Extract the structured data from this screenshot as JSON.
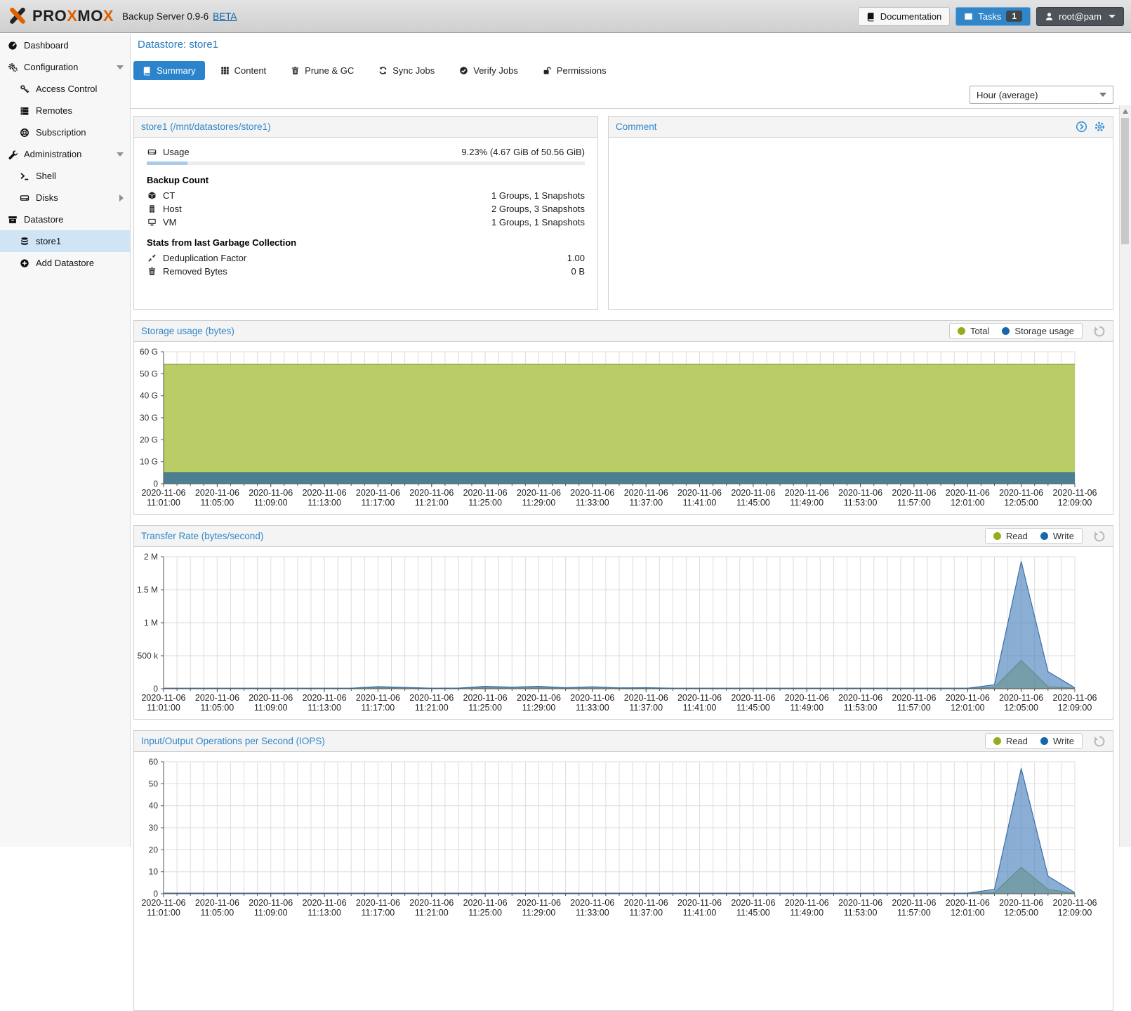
{
  "header": {
    "brand": "PROXMOX",
    "subtitle": "Backup Server 0.9-6",
    "beta": "BETA",
    "documentation": "Documentation",
    "tasks": "Tasks",
    "tasks_count": "1",
    "user": "root@pam",
    "icons": {
      "documentation": "book",
      "tasks": "list",
      "user": "user"
    }
  },
  "sidebar": {
    "items": [
      {
        "label": "Dashboard",
        "icon": "tachometer",
        "level": 0
      },
      {
        "label": "Configuration",
        "icon": "cogs",
        "level": 0,
        "arrow": "down"
      },
      {
        "label": "Access Control",
        "icon": "key",
        "level": 1
      },
      {
        "label": "Remotes",
        "icon": "server-list",
        "level": 1
      },
      {
        "label": "Subscription",
        "icon": "life-ring",
        "level": 1
      },
      {
        "label": "Administration",
        "icon": "wrench",
        "level": 0,
        "arrow": "down"
      },
      {
        "label": "Shell",
        "icon": "terminal",
        "level": 1
      },
      {
        "label": "Disks",
        "icon": "hdd",
        "level": 1,
        "arrow": "right"
      },
      {
        "label": "Datastore",
        "icon": "archive",
        "level": 0
      },
      {
        "label": "store1",
        "icon": "database",
        "level": 1,
        "selected": true
      },
      {
        "label": "Add Datastore",
        "icon": "plus-circle",
        "level": 1
      }
    ]
  },
  "page": {
    "title": "Datastore: store1",
    "tabs": [
      {
        "label": "Summary",
        "icon": "book",
        "active": true
      },
      {
        "label": "Content",
        "icon": "grid"
      },
      {
        "label": "Prune & GC",
        "icon": "trash"
      },
      {
        "label": "Sync Jobs",
        "icon": "sync"
      },
      {
        "label": "Verify Jobs",
        "icon": "check-circle"
      },
      {
        "label": "Permissions",
        "icon": "unlock"
      }
    ],
    "range_select": "Hour (average)"
  },
  "store_panel": {
    "title": "store1 (/mnt/datastores/store1)",
    "usage_label": "Usage",
    "usage_value": "9.23% (4.67 GiB of 50.56 GiB)",
    "usage_pct": 9.23,
    "backup_count_heading": "Backup Count",
    "rows": [
      {
        "icon": "cube",
        "label": "CT",
        "value": "1 Groups, 1 Snapshots"
      },
      {
        "icon": "building",
        "label": "Host",
        "value": "2 Groups, 3 Snapshots"
      },
      {
        "icon": "desktop",
        "label": "VM",
        "value": "1 Groups, 1 Snapshots"
      }
    ],
    "gc_heading": "Stats from last Garbage Collection",
    "gc_rows": [
      {
        "icon": "compress",
        "label": "Deduplication Factor",
        "value": "1.00"
      },
      {
        "icon": "trash",
        "label": "Removed Bytes",
        "value": "0 B"
      }
    ]
  },
  "comment_panel": {
    "title": "Comment"
  },
  "chart_data": [
    {
      "type": "area",
      "title": "Storage usage (bytes)",
      "ylabel": "bytes",
      "ylim": [
        0,
        60000000000
      ],
      "minutes_span": 68,
      "points_per_label": 2,
      "x_date": "2020-11-06",
      "x_times": [
        "11:01:00",
        "11:05:00",
        "11:09:00",
        "11:13:00",
        "11:17:00",
        "11:21:00",
        "11:25:00",
        "11:29:00",
        "11:33:00",
        "11:37:00",
        "11:41:00",
        "11:45:00",
        "11:49:00",
        "11:53:00",
        "11:57:00",
        "12:01:00",
        "12:05:00",
        "12:09:00"
      ],
      "y_ticks": [
        {
          "v": 0,
          "label": "0"
        },
        {
          "v": 10000000000,
          "label": "10 G"
        },
        {
          "v": 20000000000,
          "label": "20 G"
        },
        {
          "v": 30000000000,
          "label": "30 G"
        },
        {
          "v": 40000000000,
          "label": "40 G"
        },
        {
          "v": 50000000000,
          "label": "50 G"
        },
        {
          "v": 60000000000,
          "label": "60 G"
        }
      ],
      "legend": [
        {
          "label": "Total",
          "color": "#94ad1a"
        },
        {
          "label": "Storage usage",
          "color": "#1866ae"
        }
      ],
      "series": [
        {
          "name": "Total",
          "line": "#7f9c3a",
          "fill": "#b9cc66",
          "values": [
            54300000000,
            54300000000,
            54300000000,
            54300000000,
            54300000000,
            54300000000,
            54300000000,
            54300000000,
            54300000000,
            54300000000,
            54300000000,
            54300000000,
            54300000000,
            54300000000,
            54300000000,
            54300000000,
            54300000000,
            54300000000,
            54300000000,
            54300000000,
            54300000000,
            54300000000,
            54300000000,
            54300000000,
            54300000000,
            54300000000,
            54300000000,
            54300000000,
            54300000000,
            54300000000,
            54300000000,
            54300000000,
            54300000000,
            54300000000,
            54300000000
          ]
        },
        {
          "name": "Storage usage",
          "line": "#2e6076",
          "fill": "#4d7f93",
          "values": [
            5010000000,
            5010000000,
            5010000000,
            5010000000,
            5010000000,
            5010000000,
            5010000000,
            5010000000,
            5010000000,
            5010000000,
            5010000000,
            5010000000,
            5010000000,
            5010000000,
            5010000000,
            5010000000,
            5010000000,
            5010000000,
            5010000000,
            5010000000,
            5010000000,
            5010000000,
            5010000000,
            5010000000,
            5010000000,
            5010000000,
            5010000000,
            5010000000,
            5010000000,
            5010000000,
            5010000000,
            5010000000,
            5010000000,
            5010000000,
            5010000000
          ]
        }
      ]
    },
    {
      "type": "area",
      "title": "Transfer Rate (bytes/second)",
      "ylabel": "bytes/second",
      "ylim": [
        0,
        2000000
      ],
      "minutes_span": 68,
      "points_per_label": 2,
      "x_date": "2020-11-06",
      "x_times": [
        "11:01:00",
        "11:05:00",
        "11:09:00",
        "11:13:00",
        "11:17:00",
        "11:21:00",
        "11:25:00",
        "11:29:00",
        "11:33:00",
        "11:37:00",
        "11:41:00",
        "11:45:00",
        "11:49:00",
        "11:53:00",
        "11:57:00",
        "12:01:00",
        "12:05:00",
        "12:09:00"
      ],
      "y_ticks": [
        {
          "v": 0,
          "label": "0"
        },
        {
          "v": 500000,
          "label": "500 k"
        },
        {
          "v": 1000000,
          "label": "1 M"
        },
        {
          "v": 1500000,
          "label": "1.5 M"
        },
        {
          "v": 2000000,
          "label": "2 M"
        }
      ],
      "legend": [
        {
          "label": "Read",
          "color": "#94ad1a"
        },
        {
          "label": "Write",
          "color": "#1866ae"
        }
      ],
      "series": [
        {
          "name": "Read",
          "line": "#87a018",
          "fill": "rgba(148,173,30,0.55)",
          "values": [
            5000,
            5000,
            5000,
            5000,
            5000,
            5000,
            5000,
            5000,
            22000,
            15000,
            6000,
            8000,
            26000,
            18000,
            26000,
            12000,
            24000,
            10000,
            12000,
            6000,
            6000,
            6000,
            6000,
            6000,
            6000,
            6000,
            6000,
            6000,
            6000,
            6000,
            6000,
            20000,
            430000,
            30000,
            8000
          ]
        },
        {
          "name": "Write",
          "line": "#3a6ea8",
          "fill": "rgba(77,131,190,0.65)",
          "values": [
            9000,
            9000,
            9000,
            9000,
            9000,
            9000,
            9000,
            9000,
            32000,
            20000,
            9000,
            10000,
            36000,
            24000,
            36000,
            16000,
            30000,
            14000,
            16000,
            9000,
            9000,
            9000,
            9000,
            9000,
            9000,
            9000,
            9000,
            9000,
            9000,
            9000,
            9000,
            60000,
            1930000,
            260000,
            15000
          ]
        }
      ]
    },
    {
      "type": "area",
      "title": "Input/Output Operations per Second (IOPS)",
      "ylabel": "IOPS",
      "ylim": [
        0,
        60
      ],
      "minutes_span": 68,
      "points_per_label": 2,
      "x_date": "2020-11-06",
      "x_times": [
        "11:01:00",
        "11:05:00",
        "11:09:00",
        "11:13:00",
        "11:17:00",
        "11:21:00",
        "11:25:00",
        "11:29:00",
        "11:33:00",
        "11:37:00",
        "11:41:00",
        "11:45:00",
        "11:49:00",
        "11:53:00",
        "11:57:00",
        "12:01:00",
        "12:05:00",
        "12:09:00"
      ],
      "y_ticks": [
        {
          "v": 0,
          "label": "0"
        },
        {
          "v": 10,
          "label": "10"
        },
        {
          "v": 20,
          "label": "20"
        },
        {
          "v": 30,
          "label": "30"
        },
        {
          "v": 40,
          "label": "40"
        },
        {
          "v": 50,
          "label": "50"
        },
        {
          "v": 60,
          "label": "60"
        }
      ],
      "legend": [
        {
          "label": "Read",
          "color": "#94ad1a"
        },
        {
          "label": "Write",
          "color": "#1866ae"
        }
      ],
      "series": [
        {
          "name": "Read",
          "line": "#87a018",
          "fill": "rgba(148,173,30,0.55)",
          "values": [
            0.2,
            0.2,
            0.2,
            0.2,
            0.2,
            0.2,
            0.2,
            0.2,
            0.2,
            0.2,
            0.2,
            0.2,
            0.2,
            0.2,
            0.2,
            0.2,
            0.2,
            0.2,
            0.2,
            0.2,
            0.2,
            0.2,
            0.2,
            0.2,
            0.2,
            0.2,
            0.2,
            0.2,
            0.2,
            0.2,
            0.2,
            0.5,
            12,
            2,
            0.2
          ]
        },
        {
          "name": "Write",
          "line": "#3a6ea8",
          "fill": "rgba(77,131,190,0.65)",
          "values": [
            0.3,
            0.3,
            0.3,
            0.3,
            0.3,
            0.3,
            0.3,
            0.3,
            0.3,
            0.3,
            0.3,
            0.3,
            0.3,
            0.3,
            0.3,
            0.3,
            0.3,
            0.3,
            0.3,
            0.3,
            0.3,
            0.3,
            0.3,
            0.3,
            0.3,
            0.3,
            0.3,
            0.3,
            0.3,
            0.3,
            0.3,
            2,
            57,
            8,
            0.5
          ]
        }
      ]
    }
  ]
}
